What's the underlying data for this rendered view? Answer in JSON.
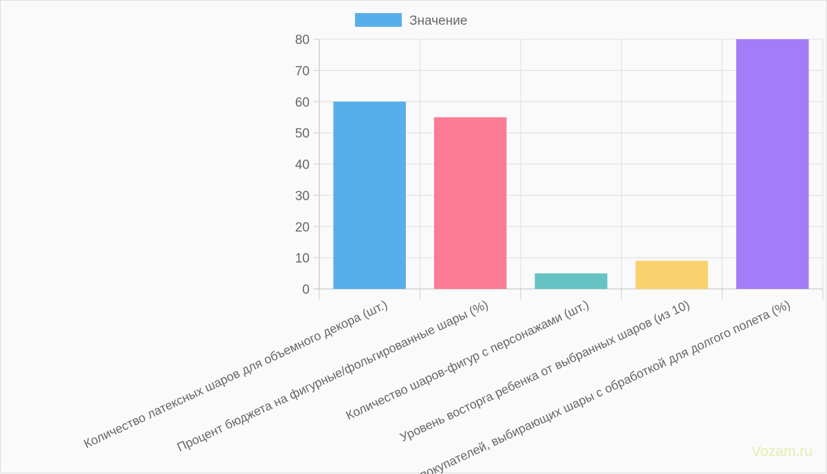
{
  "chart_data": {
    "type": "bar",
    "categories": [
      "Количество латексных шаров для объемного декора (шт.)",
      "Процент бюджета на фигурные/фольгированные шары (%)",
      "Количество шаров-фигур с персонажами (шт.)",
      "Уровень восторга ребенка от выбранных шаров (из 10)",
      "Доля покупателей, выбирающих шары с обработкой для долгого полета (%)"
    ],
    "series": [
      {
        "name": "Значение",
        "values": [
          60,
          55,
          5,
          9,
          80
        ]
      }
    ],
    "bar_colors": [
      "#57aeea",
      "#fb7c94",
      "#66c3c3",
      "#f9d26f",
      "#a47bf8"
    ],
    "legend_color": "#57aeea",
    "ylim": [
      0,
      80
    ],
    "yticks": [
      0,
      10,
      20,
      30,
      40,
      50,
      60,
      70,
      80
    ],
    "grid": true,
    "legend_position": "top"
  },
  "watermark": "Vozam.ru"
}
